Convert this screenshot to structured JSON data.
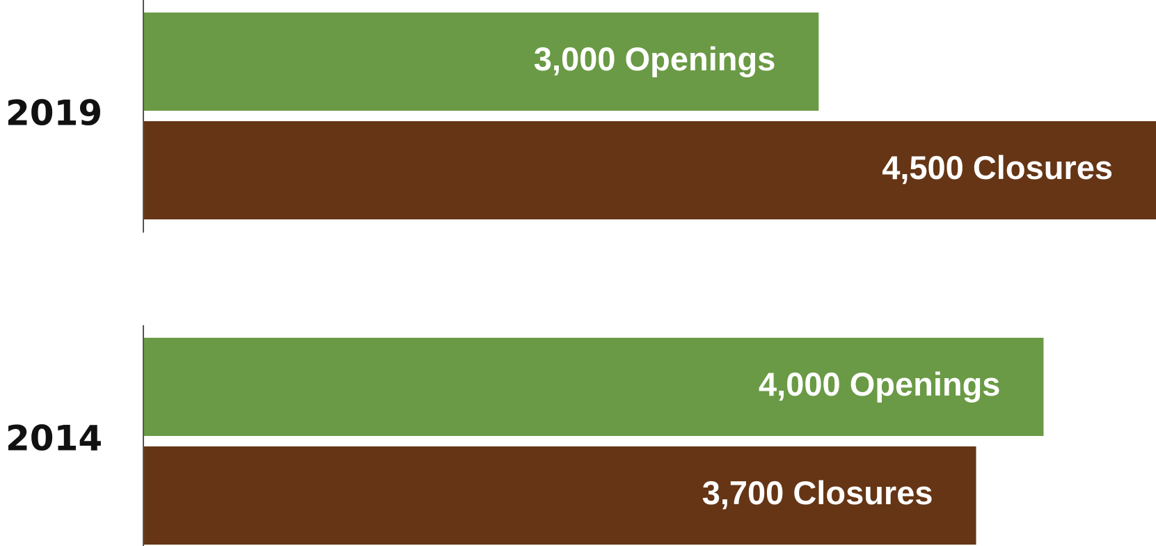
{
  "chart_data": {
    "type": "bar",
    "categories": [
      "2019",
      "2014"
    ],
    "series": [
      {
        "color": "#6a9a45",
        "values": [
          3000,
          4000
        ],
        "value_labels": [
          "3,000 Openings",
          "4,000 Openings"
        ]
      },
      {
        "color": "#653515",
        "values": [
          4500,
          3700
        ],
        "value_labels": [
          "4,500 Closures",
          "3,700 Closures"
        ]
      }
    ],
    "xlim": [
      0,
      4500
    ]
  }
}
